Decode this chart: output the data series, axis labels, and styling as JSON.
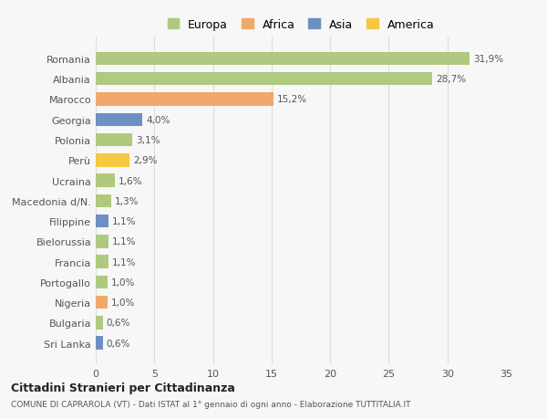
{
  "countries": [
    "Romania",
    "Albania",
    "Marocco",
    "Georgia",
    "Polonia",
    "Perù",
    "Ucraina",
    "Macedonia d/N.",
    "Filippine",
    "Bielorussia",
    "Francia",
    "Portogallo",
    "Nigeria",
    "Bulgaria",
    "Sri Lanka"
  ],
  "values": [
    31.9,
    28.7,
    15.2,
    4.0,
    3.1,
    2.9,
    1.6,
    1.3,
    1.1,
    1.1,
    1.1,
    1.0,
    1.0,
    0.6,
    0.6
  ],
  "labels": [
    "31,9%",
    "28,7%",
    "15,2%",
    "4,0%",
    "3,1%",
    "2,9%",
    "1,6%",
    "1,3%",
    "1,1%",
    "1,1%",
    "1,1%",
    "1,0%",
    "1,0%",
    "0,6%",
    "0,6%"
  ],
  "colors": [
    "#afc97e",
    "#afc97e",
    "#f0a96a",
    "#6e8fc4",
    "#afc97e",
    "#f5c842",
    "#afc97e",
    "#afc97e",
    "#6e8fc4",
    "#afc97e",
    "#afc97e",
    "#afc97e",
    "#f0a96a",
    "#afc97e",
    "#6e8fc4"
  ],
  "continent_colors_order": [
    "Europa",
    "Africa",
    "Asia",
    "America"
  ],
  "continent_colors": {
    "Europa": "#afc97e",
    "Africa": "#f0a96a",
    "Asia": "#6e8fc4",
    "America": "#f5c842"
  },
  "xlim": [
    0,
    35
  ],
  "xticks": [
    0,
    5,
    10,
    15,
    20,
    25,
    30,
    35
  ],
  "title": "Cittadini Stranieri per Cittadinanza",
  "subtitle": "COMUNE DI CAPRAROLA (VT) - Dati ISTAT al 1° gennaio di ogni anno - Elaborazione TUTTITALIA.IT",
  "bg_color": "#f7f7f7",
  "grid_color": "#dddddd",
  "bar_height": 0.65
}
